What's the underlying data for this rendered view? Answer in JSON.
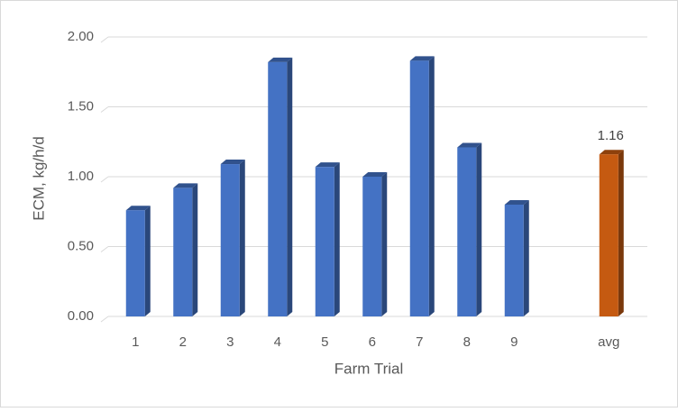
{
  "chart_data": {
    "type": "bar3d",
    "x_label": "Farm Trial",
    "y_label": "ECM, kg/h/d",
    "categories": [
      "1",
      "2",
      "3",
      "4",
      "5",
      "6",
      "7",
      "8",
      "9",
      null,
      "avg"
    ],
    "values": [
      0.76,
      0.92,
      1.09,
      1.82,
      1.07,
      1.0,
      1.83,
      1.21,
      0.8,
      null,
      1.16
    ],
    "value_labels": [
      null,
      null,
      null,
      null,
      null,
      null,
      null,
      null,
      null,
      null,
      "1.16"
    ],
    "colors": [
      "#4472c4",
      "#4472c4",
      "#4472c4",
      "#4472c4",
      "#4472c4",
      "#4472c4",
      "#4472c4",
      "#4472c4",
      "#4472c4",
      null,
      "#c55a11"
    ],
    "ylim": [
      0,
      2
    ],
    "yticks": [
      {
        "value": 0,
        "label": "0.00"
      },
      {
        "value": 0.5,
        "label": "0.50"
      },
      {
        "value": 1,
        "label": "1.00"
      },
      {
        "value": 1.5,
        "label": "1.50"
      },
      {
        "value": 2,
        "label": "2.00"
      }
    ],
    "grid": true
  }
}
